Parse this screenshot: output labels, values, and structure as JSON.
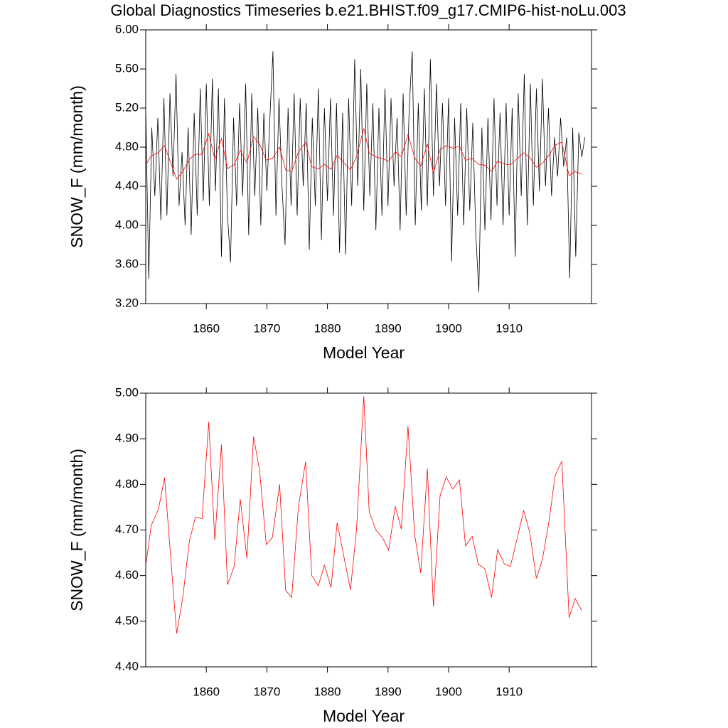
{
  "chart_data": [
    {
      "type": "line",
      "title": "Global Diagnostics Timeseries b.e21.BHIST.f09_g17.CMIP6-hist-noLu.003",
      "x_label": "Model Year",
      "y_label": "SNOW_F (mm/month)",
      "xlim": [
        1850,
        1923.6
      ],
      "xticks": [
        1860,
        1870,
        1880,
        1890,
        1900,
        1910
      ],
      "ylim": [
        3.2,
        6.0
      ],
      "yticks": [
        {
          "value": 3.2,
          "label": "3.20"
        },
        {
          "value": 3.6,
          "label": "3.60"
        },
        {
          "value": 4.0,
          "label": "4.00"
        },
        {
          "value": 4.4,
          "label": "4.40"
        },
        {
          "value": 4.8,
          "label": "4.80"
        },
        {
          "value": 5.2,
          "label": "5.20"
        },
        {
          "value": 5.6,
          "label": "5.60"
        },
        {
          "value": 6.0,
          "label": "6.00"
        }
      ],
      "series": [
        {
          "color": "#000000",
          "x": [
            1850,
            1850.5,
            1851,
            1851.5,
            1852,
            1852.5,
            1853,
            1853.5,
            1854,
            1854.5,
            1855,
            1855.5,
            1856,
            1856.5,
            1857,
            1857.5,
            1858,
            1858.5,
            1859,
            1859.5,
            1860,
            1860.5,
            1861,
            1861.5,
            1862,
            1862.5,
            1863,
            1863.5,
            1864,
            1864.5,
            1865,
            1865.5,
            1866,
            1866.5,
            1867,
            1867.5,
            1868,
            1868.5,
            1869,
            1869.5,
            1870,
            1870.5,
            1871,
            1871.5,
            1872,
            1872.5,
            1873,
            1873.5,
            1874,
            1874.5,
            1875,
            1875.5,
            1876,
            1876.5,
            1877,
            1877.5,
            1878,
            1878.5,
            1879,
            1879.5,
            1880,
            1880.5,
            1881,
            1881.5,
            1882,
            1882.5,
            1883,
            1883.5,
            1884,
            1884.5,
            1885,
            1885.5,
            1886,
            1886.5,
            1887,
            1887.5,
            1888,
            1888.5,
            1889,
            1889.5,
            1890,
            1890.5,
            1891,
            1891.5,
            1892,
            1892.5,
            1893,
            1893.5,
            1894,
            1894.5,
            1895,
            1895.5,
            1896,
            1896.5,
            1897,
            1897.5,
            1898,
            1898.5,
            1899,
            1899.5,
            1900,
            1900.5,
            1901,
            1901.5,
            1902,
            1902.5,
            1903,
            1903.5,
            1904,
            1904.5,
            1905,
            1905.5,
            1906,
            1906.5,
            1907,
            1907.5,
            1908,
            1908.5,
            1909,
            1909.5,
            1910,
            1910.5,
            1911,
            1911.5,
            1912,
            1912.5,
            1913,
            1913.5,
            1914,
            1914.5,
            1915,
            1915.5,
            1916,
            1916.5,
            1917,
            1917.5,
            1918,
            1918.5,
            1919,
            1919.5,
            1920,
            1920.5,
            1921,
            1921.5,
            1922,
            1922.5
          ],
          "values": [
            5.2,
            3.45,
            5.0,
            4.3,
            5.1,
            4.05,
            5.3,
            4.1,
            5.35,
            4.5,
            5.55,
            4.2,
            4.75,
            4.0,
            5.0,
            3.9,
            5.15,
            4.1,
            5.4,
            4.25,
            5.45,
            4.2,
            5.5,
            4.35,
            5.4,
            3.68,
            5.3,
            4.1,
            3.62,
            5.1,
            4.2,
            5.25,
            4.3,
            5.45,
            3.9,
            5.35,
            4.3,
            5.2,
            4.0,
            5.15,
            4.35,
            5.1,
            5.78,
            4.1,
            5.3,
            4.4,
            3.8,
            5.2,
            4.2,
            5.35,
            4.1,
            5.3,
            4.4,
            5.25,
            3.75,
            5.1,
            4.2,
            5.4,
            3.85,
            5.2,
            4.25,
            5.3,
            4.1,
            5.25,
            3.72,
            5.15,
            3.7,
            5.3,
            4.2,
            5.7,
            4.4,
            5.6,
            4.15,
            5.45,
            4.3,
            5.25,
            3.95,
            5.2,
            4.1,
            5.4,
            4.2,
            5.3,
            4.4,
            5.1,
            3.95,
            5.35,
            4.1,
            5.2,
            5.78,
            4.0,
            5.25,
            4.15,
            5.4,
            4.2,
            5.7,
            4.3,
            5.45,
            4.4,
            5.25,
            4.2,
            5.3,
            3.63,
            5.1,
            4.1,
            5.25,
            4.0,
            5.2,
            4.15,
            5.05,
            3.9,
            3.32,
            5.0,
            3.95,
            5.1,
            4.05,
            5.3,
            4.2,
            5.15,
            4.0,
            5.25,
            4.1,
            5.2,
            3.68,
            5.35,
            4.3,
            5.55,
            4.0,
            5.45,
            4.2,
            5.4,
            4.35,
            5.5,
            4.4,
            5.2,
            4.3,
            4.9,
            4.5,
            5.1,
            4.6,
            4.9,
            3.46,
            5.0,
            3.68,
            4.95,
            4.7,
            4.9
          ]
        },
        {
          "color": "#ff0000",
          "x": [
            1850.1,
            1850.9,
            1852.1,
            1853.1,
            1855.1,
            1856.1,
            1857.2,
            1858.2,
            1859.3,
            1860.4,
            1861.4,
            1862.5,
            1863.5,
            1864.6,
            1865.6,
            1866.7,
            1867.8,
            1868.8,
            1869.9,
            1870.9,
            1872.1,
            1873.1,
            1874.1,
            1875.2,
            1876.4,
            1877.4,
            1878.5,
            1879.5,
            1880.6,
            1881.6,
            1883.8,
            1884.8,
            1886.0,
            1886.9,
            1888.0,
            1889.1,
            1890.1,
            1891.2,
            1892.2,
            1893.3,
            1894.4,
            1895.4,
            1896.5,
            1897.5,
            1898.6,
            1899.6,
            1900.7,
            1901.8,
            1902.8,
            1903.9,
            1904.9,
            1906.0,
            1907.1,
            1908.1,
            1909.2,
            1910.2,
            1911.3,
            1912.4,
            1913.4,
            1914.5,
            1915.5,
            1916.6,
            1917.6,
            1918.7,
            1919.9,
            1920.9,
            1922.0
          ],
          "values": [
            4.63,
            4.71,
            4.745,
            4.815,
            4.473,
            4.55,
            4.675,
            4.728,
            4.725,
            4.937,
            4.678,
            4.887,
            4.58,
            4.62,
            4.768,
            4.638,
            4.905,
            4.83,
            4.668,
            4.683,
            4.8,
            4.568,
            4.552,
            4.75,
            4.85,
            4.6,
            4.578,
            4.623,
            4.574,
            4.716,
            4.569,
            4.7,
            4.993,
            4.74,
            4.7,
            4.683,
            4.656,
            4.752,
            4.702,
            4.928,
            4.69,
            4.606,
            4.835,
            4.532,
            4.775,
            4.816,
            4.79,
            4.81,
            4.665,
            4.686,
            4.625,
            4.615,
            4.552,
            4.657,
            4.626,
            4.62,
            4.68,
            4.743,
            4.695,
            4.594,
            4.636,
            4.72,
            4.82,
            4.851,
            4.508,
            4.55,
            4.523
          ]
        }
      ]
    },
    {
      "type": "line",
      "x_label": "Model Year",
      "y_label": "SNOW_F (mm/month)",
      "xlim": [
        1850,
        1923.6
      ],
      "xticks": [
        1860,
        1870,
        1880,
        1890,
        1900,
        1910
      ],
      "ylim": [
        4.4,
        5.0
      ],
      "yticks": [
        {
          "value": 4.4,
          "label": "4.40"
        },
        {
          "value": 4.5,
          "label": "4.50"
        },
        {
          "value": 4.6,
          "label": "4.60"
        },
        {
          "value": 4.7,
          "label": "4.70"
        },
        {
          "value": 4.8,
          "label": "4.80"
        },
        {
          "value": 4.9,
          "label": "4.90"
        },
        {
          "value": 5.0,
          "label": "5.00"
        }
      ],
      "series": [
        {
          "color": "#ff0000",
          "x": [
            1850.1,
            1850.9,
            1852.1,
            1853.1,
            1855.1,
            1856.1,
            1857.2,
            1858.2,
            1859.3,
            1860.4,
            1861.4,
            1862.5,
            1863.5,
            1864.6,
            1865.6,
            1866.7,
            1867.8,
            1868.8,
            1869.9,
            1870.9,
            1872.1,
            1873.1,
            1874.1,
            1875.2,
            1876.4,
            1877.4,
            1878.5,
            1879.5,
            1880.6,
            1881.6,
            1883.8,
            1884.8,
            1886.0,
            1886.9,
            1888.0,
            1889.1,
            1890.1,
            1891.2,
            1892.2,
            1893.3,
            1894.4,
            1895.4,
            1896.5,
            1897.5,
            1898.6,
            1899.6,
            1900.7,
            1901.8,
            1902.8,
            1903.9,
            1904.9,
            1906.0,
            1907.1,
            1908.1,
            1909.2,
            1910.2,
            1911.3,
            1912.4,
            1913.4,
            1914.5,
            1915.5,
            1916.6,
            1917.6,
            1918.7,
            1919.9,
            1920.9,
            1922.0
          ],
          "values": [
            4.63,
            4.71,
            4.745,
            4.815,
            4.473,
            4.55,
            4.675,
            4.728,
            4.725,
            4.937,
            4.678,
            4.887,
            4.58,
            4.62,
            4.768,
            4.638,
            4.905,
            4.83,
            4.668,
            4.683,
            4.8,
            4.568,
            4.552,
            4.75,
            4.85,
            4.6,
            4.578,
            4.623,
            4.574,
            4.716,
            4.569,
            4.7,
            4.993,
            4.74,
            4.7,
            4.683,
            4.656,
            4.752,
            4.702,
            4.928,
            4.69,
            4.606,
            4.835,
            4.532,
            4.775,
            4.816,
            4.79,
            4.81,
            4.665,
            4.686,
            4.625,
            4.615,
            4.552,
            4.657,
            4.626,
            4.62,
            4.68,
            4.743,
            4.695,
            4.594,
            4.636,
            4.72,
            4.82,
            4.851,
            4.508,
            4.55,
            4.523
          ]
        }
      ]
    }
  ]
}
